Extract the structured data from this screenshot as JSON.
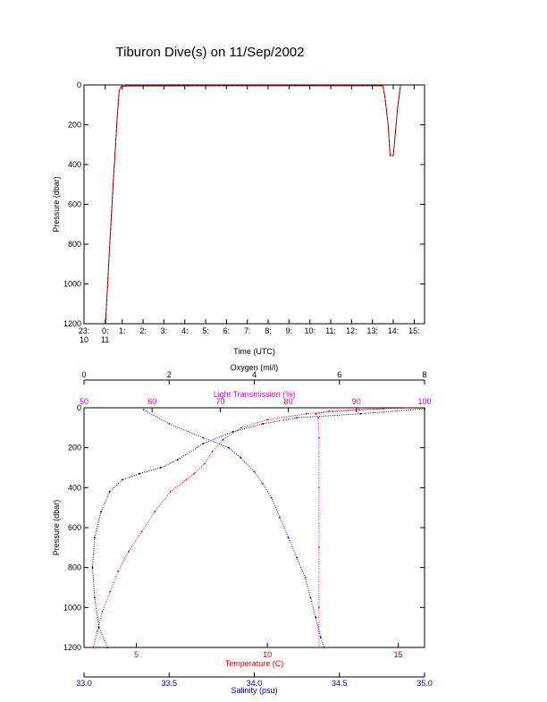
{
  "page": {
    "title": "Tiburon Dive(s) on 11/Sep/2002"
  },
  "colors": {
    "oxygen": "#000000",
    "light": "#cc00cc",
    "temperature": "#dd0000",
    "salinity": "#0000bb",
    "axis": "#000000",
    "depth_trace": "#000000"
  },
  "chart_data": [
    {
      "type": "line",
      "title": "Tiburon Dive(s) on 11/Sep/2002",
      "xlabel": "Time (UTC)",
      "ylabel": "Pressure (dbar)",
      "xlim": [
        23.1667,
        39.5
      ],
      "ylim": [
        1200,
        0
      ],
      "y_ticks": [
        0,
        200,
        400,
        600,
        800,
        1000,
        1200
      ],
      "x_ticks": [
        {
          "value": 23.1667,
          "line1": "23:",
          "line2": "10"
        },
        {
          "value": 24.1833,
          "line1": "0:",
          "line2": "11"
        },
        {
          "value": 25,
          "line1": "1:",
          "line2": ""
        },
        {
          "value": 26,
          "line1": "2:",
          "line2": ""
        },
        {
          "value": 27,
          "line1": "3:",
          "line2": ""
        },
        {
          "value": 28,
          "line1": "4:",
          "line2": ""
        },
        {
          "value": 29,
          "line1": "5:",
          "line2": ""
        },
        {
          "value": 30,
          "line1": "6:",
          "line2": ""
        },
        {
          "value": 31,
          "line1": "7:",
          "line2": ""
        },
        {
          "value": 32,
          "line1": "8:",
          "line2": ""
        },
        {
          "value": 33,
          "line1": "9:",
          "line2": ""
        },
        {
          "value": 34,
          "line1": "10:",
          "line2": ""
        },
        {
          "value": 35,
          "line1": "11:",
          "line2": ""
        },
        {
          "value": 36,
          "line1": "12:",
          "line2": ""
        },
        {
          "value": 37,
          "line1": "13:",
          "line2": ""
        },
        {
          "value": 38,
          "line1": "14:",
          "line2": ""
        },
        {
          "value": 39,
          "line1": "15:",
          "line2": ""
        }
      ],
      "grid": false,
      "series": [
        {
          "x": [
            24.2,
            24.35,
            24.55,
            24.75,
            24.85,
            24.95,
            25.2,
            30.0,
            35.0,
            37.5,
            37.6,
            37.75,
            37.85,
            38.0,
            38.05,
            38.2,
            38.35
          ],
          "y": [
            1200,
            900,
            520,
            180,
            30,
            8,
            5,
            4,
            4,
            4,
            60,
            200,
            355,
            355,
            300,
            120,
            0
          ]
        }
      ]
    },
    {
      "type": "scatter",
      "ylabel": "Pressure (dbar)",
      "ylim": [
        1200,
        0
      ],
      "y_ticks": [
        0,
        200,
        400,
        600,
        800,
        1000,
        1200
      ],
      "grid": false,
      "axes": [
        {
          "key": "oxygen",
          "label": "Oxygen (ml/l)",
          "position": "top",
          "range": [
            0,
            8
          ],
          "ticks": [
            0,
            2,
            4,
            6,
            8
          ]
        },
        {
          "key": "light",
          "label": "Light Transmission (%)",
          "position": "top",
          "range": [
            50,
            100
          ],
          "ticks": [
            50,
            60,
            70,
            80,
            90,
            100
          ]
        },
        {
          "key": "temperature",
          "label": "Temperature (C)",
          "position": "bottom",
          "range": [
            3,
            16
          ],
          "ticks": [
            5,
            10,
            15
          ]
        },
        {
          "key": "salinity",
          "label": "Salinity (psu)",
          "position": "bottom",
          "range": [
            33.0,
            35.0
          ],
          "ticks": [
            33.0,
            33.5,
            34.0,
            34.5,
            35.0
          ]
        }
      ],
      "series": [
        {
          "axis": "oxygen",
          "values": [
            [
              8.0,
              5
            ],
            [
              6.5,
              30
            ],
            [
              5.0,
              50
            ],
            [
              4.2,
              80
            ],
            [
              3.5,
              120
            ],
            [
              2.8,
              180
            ],
            [
              2.2,
              260
            ],
            [
              1.8,
              300
            ],
            [
              1.3,
              330
            ],
            [
              0.9,
              360
            ],
            [
              0.6,
              420
            ],
            [
              0.4,
              520
            ],
            [
              0.25,
              650
            ],
            [
              0.2,
              800
            ],
            [
              0.25,
              950
            ],
            [
              0.35,
              1100
            ],
            [
              0.55,
              1200
            ]
          ]
        },
        {
          "axis": "light",
          "values": [
            [
              94,
              5
            ],
            [
              86,
              15
            ],
            [
              84,
              30
            ],
            [
              84.4,
              50
            ],
            [
              84.5,
              150
            ],
            [
              84.5,
              400
            ],
            [
              84.5,
              700
            ],
            [
              84.5,
              1000
            ],
            [
              84.5,
              1200
            ]
          ]
        },
        {
          "axis": "temperature",
          "values": [
            [
              15.5,
              0
            ],
            [
              13.5,
              10
            ],
            [
              11.5,
              30
            ],
            [
              10.0,
              60
            ],
            [
              9.0,
              100
            ],
            [
              8.3,
              160
            ],
            [
              7.9,
              220
            ],
            [
              7.6,
              280
            ],
            [
              7.2,
              330
            ],
            [
              6.9,
              360
            ],
            [
              6.3,
              420
            ],
            [
              5.7,
              520
            ],
            [
              5.2,
              620
            ],
            [
              4.7,
              720
            ],
            [
              4.3,
              820
            ],
            [
              4.0,
              920
            ],
            [
              3.7,
              1020
            ],
            [
              3.5,
              1120
            ],
            [
              3.35,
              1200
            ]
          ]
        },
        {
          "axis": "salinity",
          "values": [
            [
              33.35,
              10
            ],
            [
              33.5,
              80
            ],
            [
              33.7,
              150
            ],
            [
              33.85,
              200
            ],
            [
              33.92,
              250
            ],
            [
              34.0,
              320
            ],
            [
              34.05,
              380
            ],
            [
              34.1,
              450
            ],
            [
              34.15,
              550
            ],
            [
              34.2,
              650
            ],
            [
              34.25,
              750
            ],
            [
              34.3,
              850
            ],
            [
              34.33,
              950
            ],
            [
              34.36,
              1050
            ],
            [
              34.39,
              1150
            ],
            [
              34.41,
              1200
            ]
          ]
        }
      ]
    }
  ]
}
